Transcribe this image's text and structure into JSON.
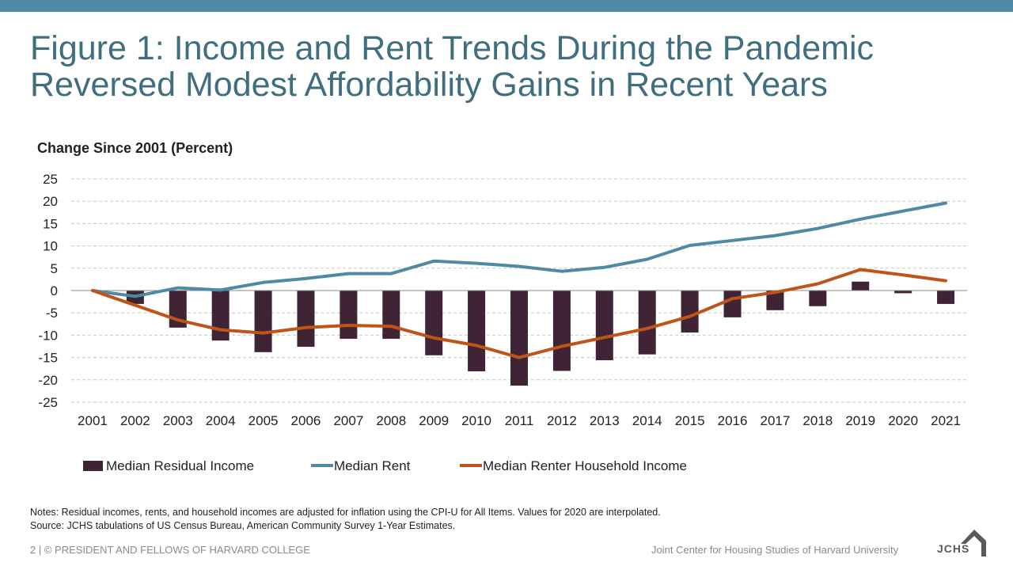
{
  "header": {
    "title_line1": "Figure 1: Income and Rent Trends During the Pandemic",
    "title_line2": "Reversed Modest Affordability Gains in Recent Years"
  },
  "colors": {
    "accent_bar": "#4e8aa5",
    "title": "#3f6e7e",
    "residual": "#3f2436",
    "rent": "#4e8aa5",
    "income": "#c05418"
  },
  "chart_data": {
    "type": "bar",
    "ylabel": "Change Since 2001 (Percent)",
    "ylim": [
      -25,
      25
    ],
    "yticks": [
      "25",
      "20",
      "15",
      "10",
      "5",
      "0",
      "-5",
      "-10",
      "-15",
      "-20",
      "-25"
    ],
    "categories": [
      "2001",
      "2002",
      "2003",
      "2004",
      "2005",
      "2006",
      "2007",
      "2008",
      "2009",
      "2010",
      "2011",
      "2012",
      "2013",
      "2014",
      "2015",
      "2016",
      "2017",
      "2018",
      "2019",
      "2020",
      "2021"
    ],
    "grid": true,
    "legend": "bottom",
    "series": [
      {
        "name": "Median Residual Income",
        "type": "bar",
        "color_key": "residual",
        "values": [
          0,
          -3.0,
          -8.3,
          -11.2,
          -13.8,
          -12.6,
          -10.8,
          -10.8,
          -14.5,
          -18.1,
          -21.3,
          -18.0,
          -15.6,
          -14.3,
          -9.4,
          -6.0,
          -4.4,
          -3.5,
          2.0,
          -0.6,
          -3.0
        ]
      },
      {
        "name": "Median Rent",
        "type": "line",
        "color_key": "rent",
        "values": [
          0,
          -1.3,
          0.6,
          0.1,
          1.8,
          2.7,
          3.8,
          3.8,
          6.6,
          6.1,
          5.4,
          4.3,
          5.2,
          7.0,
          10.1,
          11.2,
          12.3,
          13.9,
          16.0,
          17.8,
          19.6
        ]
      },
      {
        "name": "Median Renter Household Income",
        "type": "line",
        "color_key": "income",
        "values": [
          0,
          -3.3,
          -6.6,
          -8.8,
          -9.5,
          -8.3,
          -7.8,
          -8.0,
          -10.6,
          -12.3,
          -15.0,
          -12.5,
          -10.5,
          -8.5,
          -5.8,
          -1.8,
          -0.4,
          1.5,
          4.7,
          3.5,
          2.2
        ]
      }
    ]
  },
  "notes": {
    "line1": "Notes: Residual incomes, rents, and household incomes are adjusted for inflation using the CPI-U for All Items. Values for 2020 are interpolated.",
    "line2": "Source: JCHS tabulations of US Census Bureau, American Community Survey 1-Year Estimates."
  },
  "footer": {
    "left": "2 | © PRESIDENT AND FELLOWS OF HARVARD COLLEGE",
    "right": "Joint Center for Housing Studies of Harvard University",
    "logo_text": "JCHS"
  }
}
